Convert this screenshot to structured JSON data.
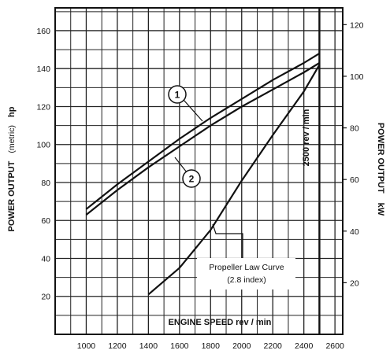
{
  "chart_data": {
    "type": "line",
    "xlabel": "ENGINE SPEED rev / min",
    "ylabel_left": "POWER OUTPUT",
    "ylabel_left_unit": "(metric)",
    "ylabel_left_suffix": "hp",
    "ylabel_right": "POWER OUTPUT",
    "ylabel_right_suffix": "kW",
    "xlim": [
      800,
      2650
    ],
    "ylim": [
      0,
      172
    ],
    "x_ticks": [
      "1000",
      "1200",
      "1400",
      "1600",
      "1800",
      "2000",
      "2200",
      "2400",
      "2600"
    ],
    "y_ticks_left": [
      "20",
      "40",
      "60",
      "80",
      "100",
      "120",
      "140",
      "160"
    ],
    "y_ticks_right": [
      "20",
      "40",
      "60",
      "80",
      "100",
      "120"
    ],
    "grid": true,
    "series": [
      {
        "name": "1",
        "x": [
          1000,
          1200,
          1400,
          1600,
          1800,
          2000,
          2200,
          2400,
          2500
        ],
        "y": [
          66,
          79,
          91,
          103,
          114,
          124,
          134,
          143,
          148
        ]
      },
      {
        "name": "2",
        "x": [
          1000,
          1200,
          1400,
          1600,
          1800,
          2000,
          2200,
          2400,
          2500
        ],
        "y": [
          63,
          76,
          88,
          99,
          110,
          120,
          129,
          138,
          143
        ]
      },
      {
        "name": "Propeller Law Curve",
        "x": [
          1400,
          1600,
          1800,
          2000,
          2200,
          2400,
          2500
        ],
        "y": [
          21,
          35,
          55,
          81,
          105,
          128,
          142
        ]
      }
    ],
    "annotations": {
      "marker_1": "1",
      "marker_2": "2",
      "propeller_line1": "Propeller Law Curve",
      "propeller_line2": "(2.8 index)",
      "rated_speed": "2500 rev / min"
    }
  }
}
